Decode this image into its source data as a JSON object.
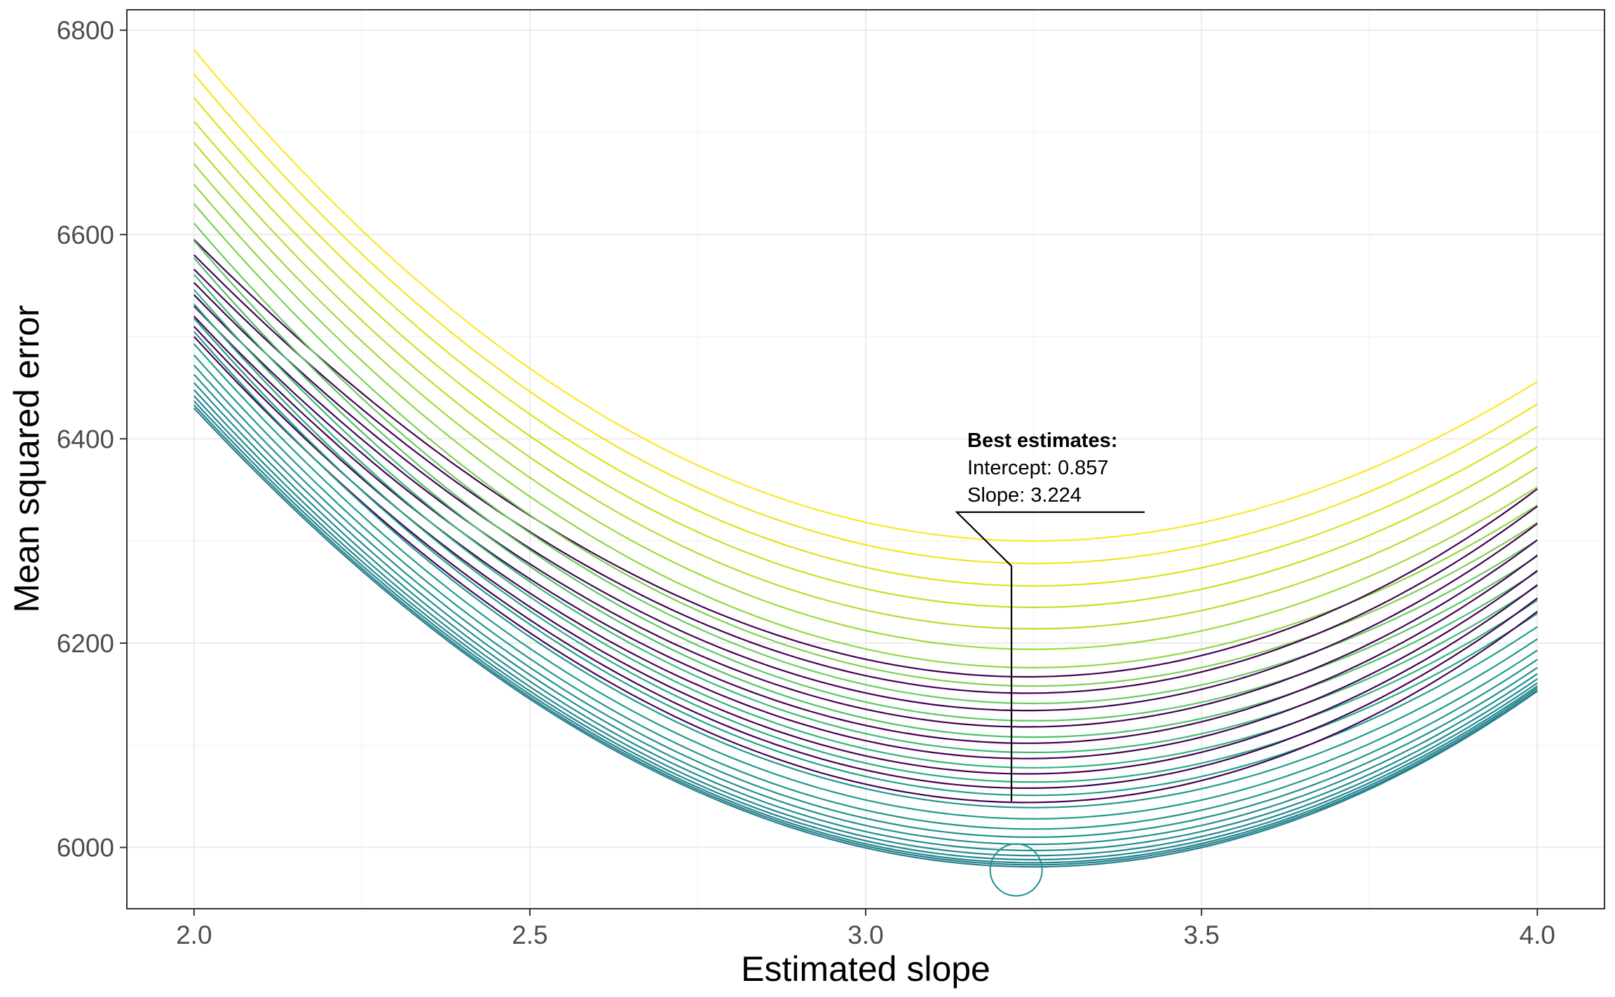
{
  "chart_data": {
    "type": "line",
    "xlabel": "Estimated slope",
    "ylabel": "Mean squared error",
    "xlim": [
      1.9,
      4.1
    ],
    "ylim": [
      5940,
      6820
    ],
    "x_ticks": [
      {
        "value": 2.0,
        "label": "2.0"
      },
      {
        "value": 2.5,
        "label": "2.5"
      },
      {
        "value": 3.0,
        "label": "3.0"
      },
      {
        "value": 3.5,
        "label": "3.5"
      },
      {
        "value": 4.0,
        "label": "4.0"
      }
    ],
    "y_ticks": [
      {
        "value": 6000,
        "label": "6000"
      },
      {
        "value": 6200,
        "label": "6200"
      },
      {
        "value": 6400,
        "label": "6400"
      },
      {
        "value": 6600,
        "label": "6600"
      },
      {
        "value": 6800,
        "label": "6800"
      }
    ],
    "grid": true,
    "legend": "none",
    "curve_model": "quadratic",
    "series": [
      {
        "color": "#FDE725",
        "values": {
          "x_start": 2.0,
          "y_start": 6781,
          "x_min": 3.25,
          "y_min": 6300,
          "x_end": 4.0,
          "y_end": 6456
        }
      },
      {
        "color": "#F1E51D",
        "values": {
          "x_start": 2.0,
          "y_start": 6757,
          "x_min": 3.25,
          "y_min": 6278,
          "x_end": 4.0,
          "y_end": 6434
        }
      },
      {
        "color": "#DCE318",
        "values": {
          "x_start": 2.0,
          "y_start": 6734,
          "x_min": 3.25,
          "y_min": 6256,
          "x_end": 4.0,
          "y_end": 6412
        }
      },
      {
        "color": "#C8E020",
        "values": {
          "x_start": 2.0,
          "y_start": 6711,
          "x_min": 3.25,
          "y_min": 6235,
          "x_end": 4.0,
          "y_end": 6392
        }
      },
      {
        "color": "#B4DE2C",
        "values": {
          "x_start": 2.0,
          "y_start": 6690,
          "x_min": 3.25,
          "y_min": 6214,
          "x_end": 4.0,
          "y_end": 6372
        }
      },
      {
        "color": "#A0DA39",
        "values": {
          "x_start": 2.0,
          "y_start": 6669,
          "x_min": 3.25,
          "y_min": 6194,
          "x_end": 4.0,
          "y_end": 6353
        }
      },
      {
        "color": "#8FD744",
        "values": {
          "x_start": 2.0,
          "y_start": 6649,
          "x_min": 3.25,
          "y_min": 6176,
          "x_end": 4.0,
          "y_end": 6335
        }
      },
      {
        "color": "#440154",
        "values": {
          "x_start": 2.0,
          "y_start": 6595,
          "x_min": 3.24,
          "y_min": 6167,
          "x_end": 4.0,
          "y_end": 6351
        }
      },
      {
        "color": "#7AD151",
        "values": {
          "x_start": 2.0,
          "y_start": 6630,
          "x_min": 3.25,
          "y_min": 6158,
          "x_end": 4.0,
          "y_end": 6318
        }
      },
      {
        "color": "#440154",
        "values": {
          "x_start": 2.0,
          "y_start": 6580,
          "x_min": 3.24,
          "y_min": 6151,
          "x_end": 4.0,
          "y_end": 6334
        }
      },
      {
        "color": "#69CD5B",
        "values": {
          "x_start": 2.0,
          "y_start": 6611,
          "x_min": 3.25,
          "y_min": 6141,
          "x_end": 4.0,
          "y_end": 6301
        }
      },
      {
        "color": "#440154",
        "values": {
          "x_start": 2.0,
          "y_start": 6566,
          "x_min": 3.24,
          "y_min": 6134,
          "x_end": 4.0,
          "y_end": 6317
        }
      },
      {
        "color": "#5AC864",
        "values": {
          "x_start": 2.0,
          "y_start": 6594,
          "x_min": 3.25,
          "y_min": 6124,
          "x_end": 4.0,
          "y_end": 6285
        }
      },
      {
        "color": "#440154",
        "values": {
          "x_start": 2.0,
          "y_start": 6553,
          "x_min": 3.24,
          "y_min": 6118,
          "x_end": 4.0,
          "y_end": 6301
        }
      },
      {
        "color": "#4AC16D",
        "values": {
          "x_start": 2.0,
          "y_start": 6577,
          "x_min": 3.25,
          "y_min": 6108,
          "x_end": 4.0,
          "y_end": 6270
        }
      },
      {
        "color": "#440154",
        "values": {
          "x_start": 2.0,
          "y_start": 6541,
          "x_min": 3.24,
          "y_min": 6102,
          "x_end": 4.0,
          "y_end": 6286
        }
      },
      {
        "color": "#3BBB75",
        "values": {
          "x_start": 2.0,
          "y_start": 6561,
          "x_min": 3.25,
          "y_min": 6093,
          "x_end": 4.0,
          "y_end": 6256
        }
      },
      {
        "color": "#440154",
        "values": {
          "x_start": 2.0,
          "y_start": 6530,
          "x_min": 3.24,
          "y_min": 6087,
          "x_end": 4.0,
          "y_end": 6271
        }
      },
      {
        "color": "#2FB47C",
        "values": {
          "x_start": 2.0,
          "y_start": 6546,
          "x_min": 3.25,
          "y_min": 6078,
          "x_end": 4.0,
          "y_end": 6242
        }
      },
      {
        "color": "#440154",
        "values": {
          "x_start": 2.0,
          "y_start": 6520,
          "x_min": 3.24,
          "y_min": 6072,
          "x_end": 4.0,
          "y_end": 6257
        }
      },
      {
        "color": "#25AC82",
        "values": {
          "x_start": 2.0,
          "y_start": 6532,
          "x_min": 3.25,
          "y_min": 6064,
          "x_end": 4.0,
          "y_end": 6229
        }
      },
      {
        "color": "#440154",
        "values": {
          "x_start": 2.0,
          "y_start": 6510,
          "x_min": 3.24,
          "y_min": 6058,
          "x_end": 4.0,
          "y_end": 6244
        }
      },
      {
        "color": "#1FA188",
        "values": {
          "x_start": 2.0,
          "y_start": 6518,
          "x_min": 3.25,
          "y_min": 6051,
          "x_end": 4.0,
          "y_end": 6216
        }
      },
      {
        "color": "#440154",
        "values": {
          "x_start": 2.0,
          "y_start": 6500,
          "x_min": 3.24,
          "y_min": 6044,
          "x_end": 4.0,
          "y_end": 6231
        }
      },
      {
        "color": "#1F9A8A",
        "values": {
          "x_start": 2.0,
          "y_start": 6505,
          "x_min": 3.25,
          "y_min": 6039,
          "x_end": 4.0,
          "y_end": 6204
        }
      },
      {
        "color": "#1E9B8A",
        "values": {
          "x_start": 2.0,
          "y_start": 6493,
          "x_min": 3.25,
          "y_min": 6028,
          "x_end": 4.0,
          "y_end": 6193
        }
      },
      {
        "color": "#1F968B",
        "values": {
          "x_start": 2.0,
          "y_start": 6482,
          "x_min": 3.25,
          "y_min": 6018,
          "x_end": 4.0,
          "y_end": 6184
        }
      },
      {
        "color": "#20928C",
        "values": {
          "x_start": 2.0,
          "y_start": 6472,
          "x_min": 3.25,
          "y_min": 6010,
          "x_end": 4.0,
          "y_end": 6176
        }
      },
      {
        "color": "#218F8D",
        "values": {
          "x_start": 2.0,
          "y_start": 6463,
          "x_min": 3.25,
          "y_min": 6003,
          "x_end": 4.0,
          "y_end": 6170
        }
      },
      {
        "color": "#228C8D",
        "values": {
          "x_start": 2.0,
          "y_start": 6455,
          "x_min": 3.25,
          "y_min": 5997,
          "x_end": 4.0,
          "y_end": 6165
        }
      },
      {
        "color": "#23898E",
        "values": {
          "x_start": 2.0,
          "y_start": 6448,
          "x_min": 3.25,
          "y_min": 5992,
          "x_end": 4.0,
          "y_end": 6161
        }
      },
      {
        "color": "#24868E",
        "values": {
          "x_start": 2.0,
          "y_start": 6442,
          "x_min": 3.25,
          "y_min": 5988,
          "x_end": 4.0,
          "y_end": 6158
        }
      },
      {
        "color": "#25838E",
        "values": {
          "x_start": 2.0,
          "y_start": 6437,
          "x_min": 3.25,
          "y_min": 5985,
          "x_end": 4.0,
          "y_end": 6156
        }
      },
      {
        "color": "#26828E",
        "values": {
          "x_start": 2.0,
          "y_start": 6433,
          "x_min": 3.25,
          "y_min": 5983,
          "x_end": 4.0,
          "y_end": 6154
        }
      },
      {
        "color": "#27808E",
        "values": {
          "x_start": 2.0,
          "y_start": 6430,
          "x_min": 3.25,
          "y_min": 5981,
          "x_end": 4.0,
          "y_end": 6153
        }
      }
    ],
    "annotation": {
      "title": "Best estimates:",
      "lines": [
        "Intercept: 0.857",
        "Slope: 3.224"
      ],
      "point": {
        "x": 3.224,
        "y": 5978
      },
      "marker_color": "#21908C"
    }
  }
}
